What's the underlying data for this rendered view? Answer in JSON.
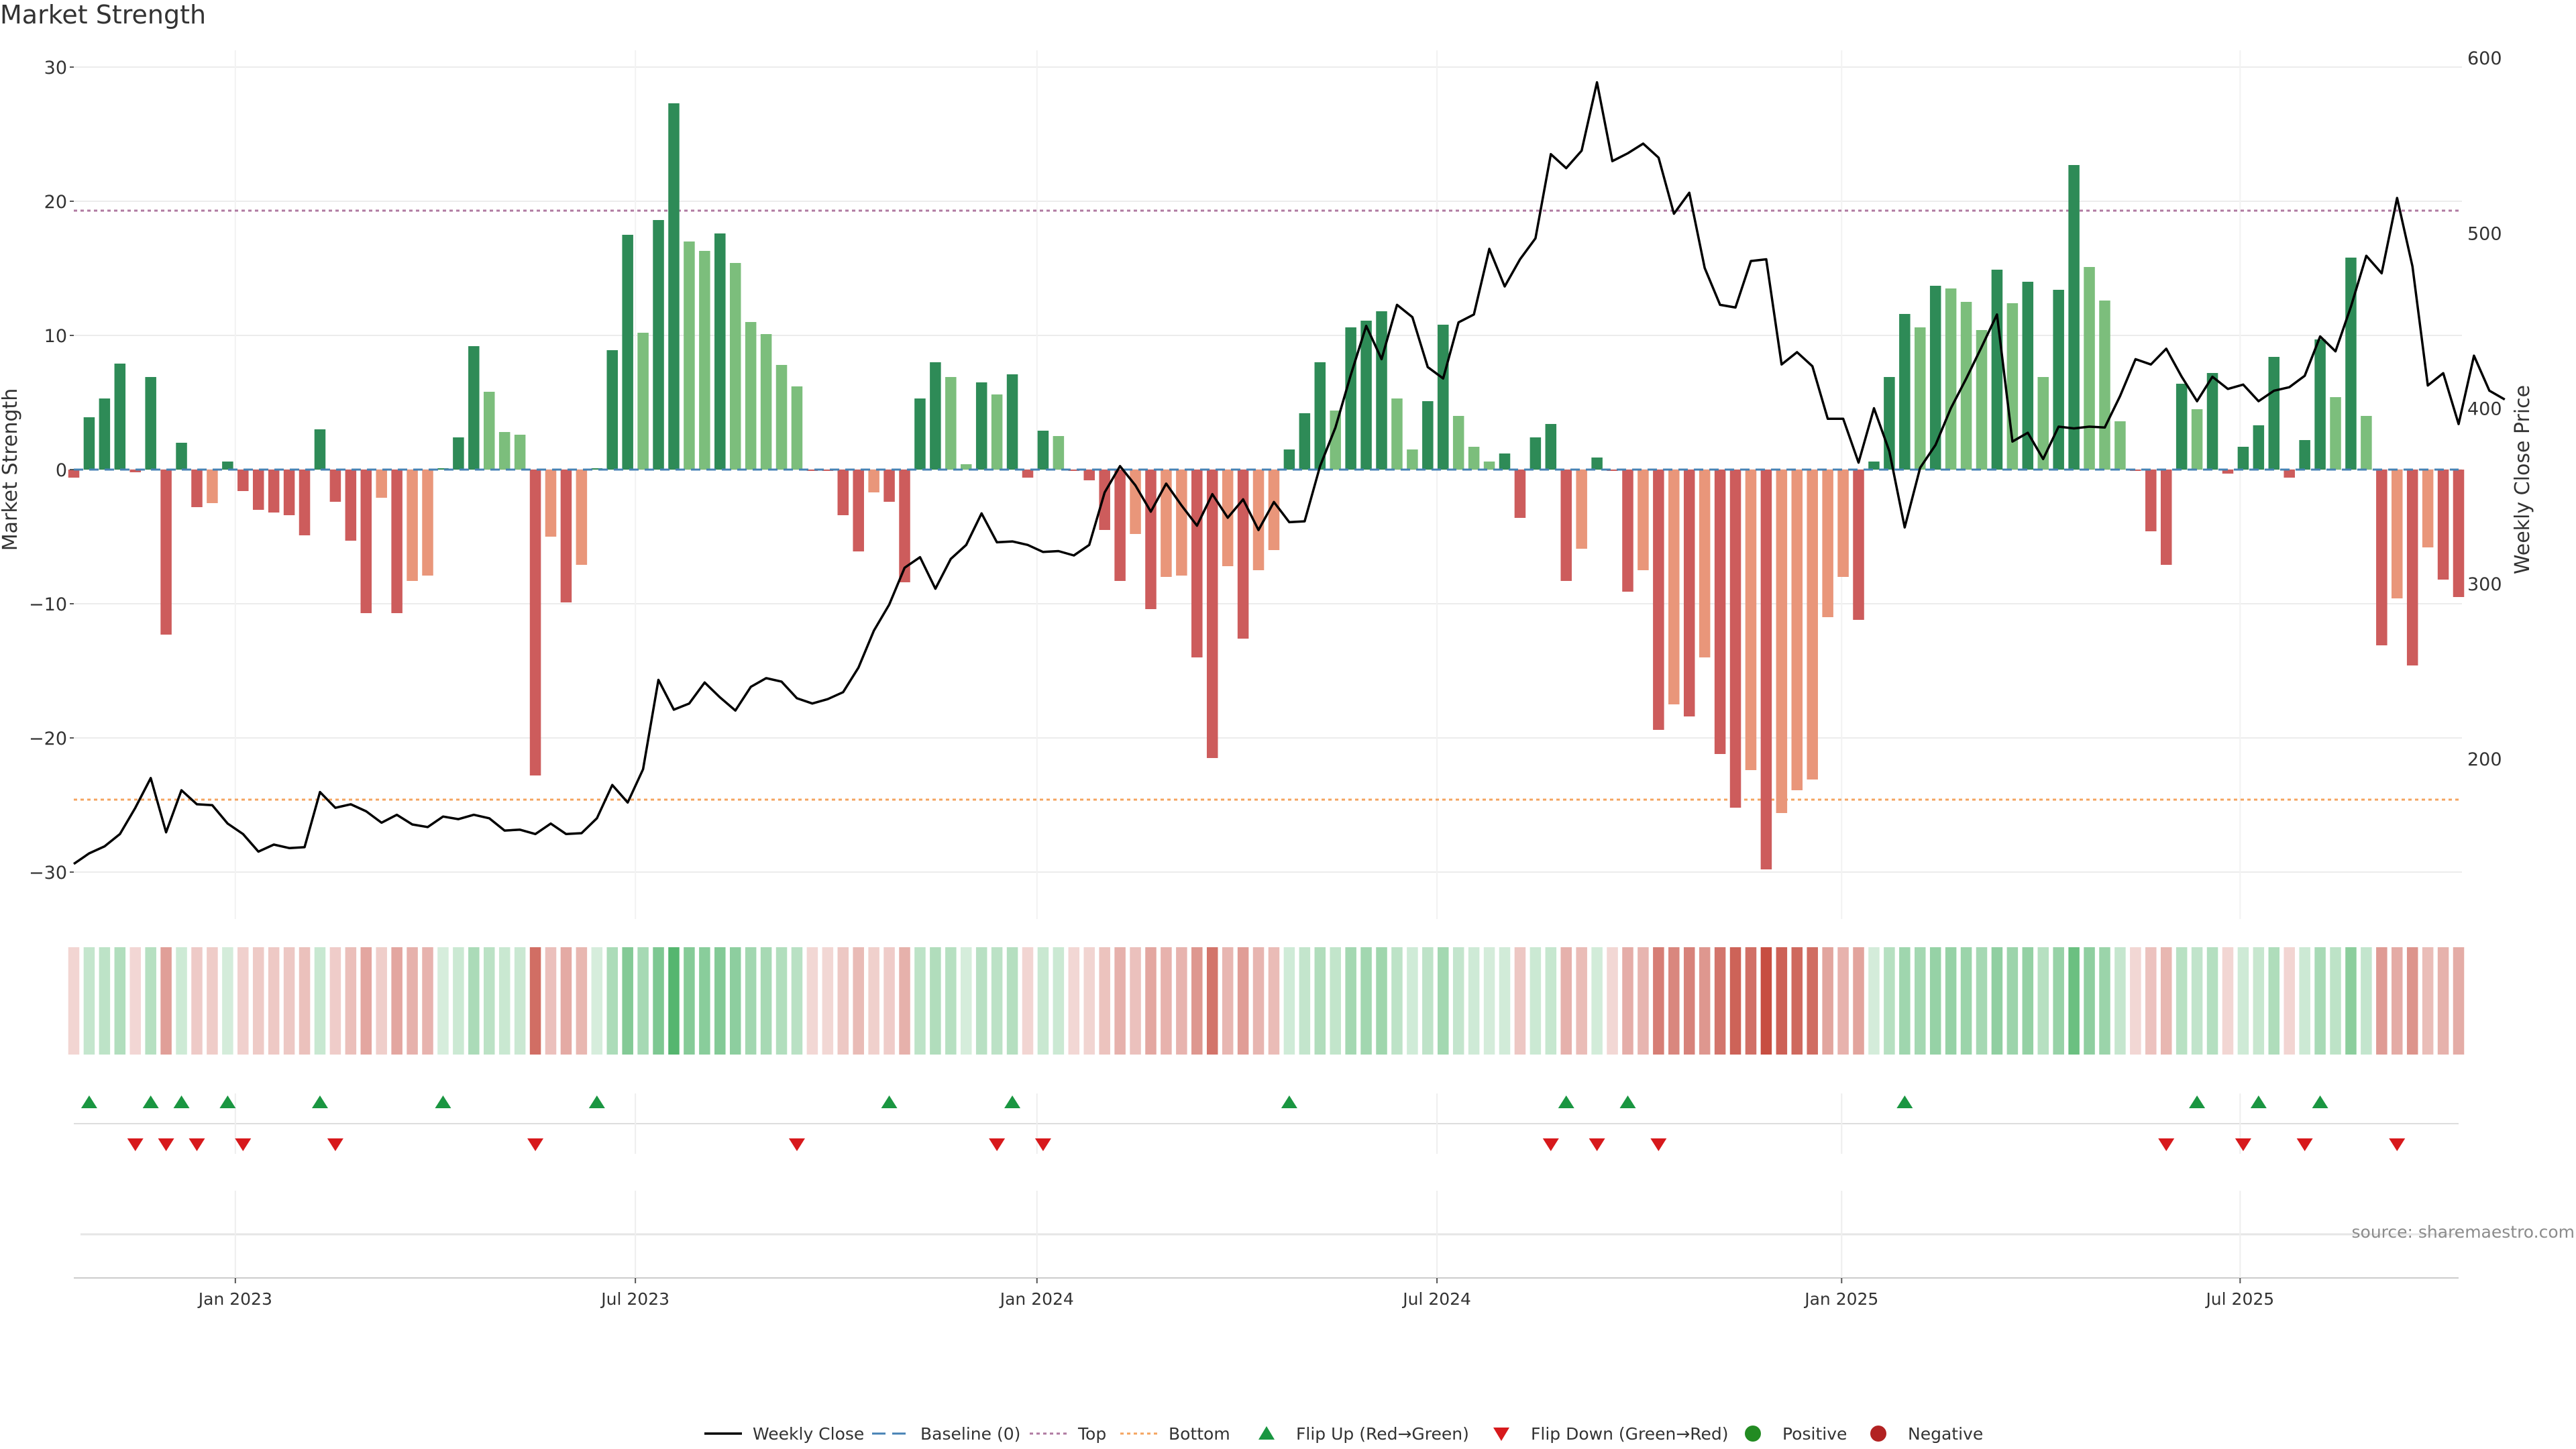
{
  "title": "Market Strength",
  "source": "source: sharemaestro.com",
  "chart_data": {
    "type": "bar",
    "title": "Market Strength",
    "ylabel": "Market Strength",
    "y2label": "Weekly Close Price",
    "ylim": [
      -32,
      32
    ],
    "y2lim": [
      120,
      610
    ],
    "yticks": [
      -30,
      -20,
      -10,
      0,
      10,
      20,
      30
    ],
    "y2ticks": [
      200,
      300,
      400,
      500,
      600
    ],
    "xticks": [
      {
        "x": 10.5,
        "label": "Jan 2023"
      },
      {
        "x": 36.5,
        "label": "Jul 2023"
      },
      {
        "x": 62.6,
        "label": "Jan 2024"
      },
      {
        "x": 88.6,
        "label": "Jul 2024"
      },
      {
        "x": 114.9,
        "label": "Jan 2025"
      },
      {
        "x": 140.8,
        "label": "Jul 2025"
      }
    ],
    "top_line": 19.3,
    "bottom_line": -24.6,
    "strength": [
      -0.6,
      3.9,
      5.3,
      7.9,
      -0.2,
      6.9,
      -12.3,
      2.0,
      -2.8,
      -2.5,
      0.6,
      -1.6,
      -3.0,
      -3.2,
      -3.4,
      -4.9,
      3.0,
      -2.4,
      -5.3,
      -10.7,
      -2.1,
      -10.7,
      -8.3,
      -7.9,
      0.1,
      2.4,
      9.2,
      5.8,
      2.8,
      2.6,
      -22.8,
      -5.0,
      -9.9,
      -7.1,
      0.1,
      8.9,
      17.5,
      10.2,
      18.6,
      27.3,
      17.0,
      16.3,
      17.6,
      15.4,
      11.0,
      10.1,
      7.8,
      6.2,
      -0.1,
      -0.1,
      -3.4,
      -6.1,
      -1.7,
      -2.4,
      -8.4,
      5.3,
      8.0,
      6.9,
      0.4,
      6.5,
      5.6,
      7.1,
      -0.6,
      2.9,
      2.5,
      -0.1,
      -0.8,
      -4.5,
      -8.3,
      -4.8,
      -10.4,
      -8.0,
      -7.9,
      -14.0,
      -21.5,
      -7.2,
      -12.6,
      -7.5,
      -6.0,
      1.5,
      4.2,
      8.0,
      4.4,
      10.6,
      11.1,
      11.8,
      5.3,
      1.5,
      5.1,
      10.8,
      4.0,
      1.7,
      0.6,
      1.2,
      -3.6,
      2.4,
      3.4,
      -8.3,
      -5.9,
      0.9,
      -0.1,
      -9.1,
      -7.5,
      -19.4,
      -17.5,
      -18.4,
      -14.0,
      -21.2,
      -25.2,
      -22.4,
      -29.8,
      -25.6,
      -23.9,
      -23.1,
      -11.0,
      -8.0,
      -11.2,
      0.6,
      6.9,
      11.6,
      10.6,
      13.7,
      13.5,
      12.5,
      10.4,
      14.9,
      12.4,
      14.0,
      6.9,
      13.4,
      22.7,
      15.1,
      12.6,
      3.6,
      -0.1,
      -4.6,
      -7.1,
      6.4,
      4.5,
      7.2,
      -0.3,
      1.7,
      3.3,
      8.4,
      -0.6,
      2.2,
      9.7,
      5.4,
      15.8,
      4.0,
      -13.1,
      -9.6,
      -14.6,
      -5.8,
      -8.2,
      -9.5
    ],
    "weekly_close": [
      140.0,
      146.0,
      150.0,
      157.0,
      172.0,
      189.0,
      158.0,
      182.0,
      174.0,
      173.5,
      163.0,
      157.0,
      147.0,
      151.0,
      149.0,
      149.5,
      181.0,
      172.0,
      174.0,
      170.0,
      163.5,
      168.0,
      162.5,
      161.0,
      167.0,
      165.5,
      168.0,
      166.0,
      159.0,
      159.5,
      157.0,
      163.0,
      157.0,
      157.5,
      166.0,
      185.0,
      175.0,
      194.0,
      245.0,
      228.0,
      231.5,
      243.5,
      235.0,
      227.5,
      241.0,
      246.0,
      244.0,
      234.5,
      231.5,
      234.0,
      238.0,
      252.0,
      273.0,
      288.0,
      309.0,
      315.0,
      297.0,
      314.0,
      322.0,
      340.0,
      323.5,
      324.0,
      322.0,
      318.0,
      318.5,
      316.0,
      322.0,
      352.0,
      367.0,
      356.0,
      341.0,
      357.0,
      344.5,
      333.0,
      351.0,
      337.5,
      348.0,
      330.5,
      346.5,
      335.0,
      335.5,
      367.0,
      389.0,
      419.0,
      447.0,
      428.0,
      459.0,
      452.0,
      423.5,
      417.0,
      449.0,
      453.5,
      491.0,
      469.5,
      485.0,
      497.0,
      545.0,
      537.0,
      547.0,
      586.0,
      541.0,
      545.5,
      551.0,
      543.0,
      511.0,
      523.0,
      480.0,
      459.0,
      457.5,
      484.0,
      485.0,
      425.0,
      432.0,
      424.0,
      394.0,
      394.0,
      369.0,
      400.0,
      375.5,
      332.0,
      366.0,
      379.0,
      400.0,
      417.0,
      435.0,
      453.5,
      381.0,
      386.0,
      371.0,
      389.5,
      388.5,
      389.5,
      389.0,
      407.0,
      428.0,
      425.0,
      434.0,
      418.0,
      404.0,
      418.0,
      411.0,
      413.5,
      404.0,
      410.0,
      412.0,
      418.5,
      441.0,
      432.5,
      458.0,
      487.0,
      477.0,
      520.0,
      481.0,
      413.0,
      420.0,
      391.0,
      430.0,
      410.0,
      405.0
    ],
    "flip_up_weeks": [
      1,
      5,
      7,
      10,
      16,
      24,
      34,
      53,
      61,
      79,
      97,
      101,
      119,
      138,
      142,
      146
    ],
    "flip_down_weeks": [
      4,
      6,
      8,
      11,
      17,
      30,
      47,
      60,
      63,
      96,
      99,
      103,
      136,
      141,
      145,
      151
    ],
    "legend": [
      "Weekly Close",
      "Baseline (0)",
      "Top",
      "Bottom",
      "Flip Up (Red→Green)",
      "Flip Down (Green→Red)",
      "Positive",
      "Negative"
    ],
    "legend_position": "bottom",
    "grid": true,
    "colors": {
      "strong_positive": "#2e8b57",
      "weak_positive": "#7cbe7c",
      "strong_negative": "#cd5c5c",
      "weak_negative": "#e9967a",
      "close_line": "#000000",
      "baseline": "#4682b4",
      "top_line": "#b07aa1",
      "bottom_line": "#f4a460",
      "flip_up": "#1a9641",
      "flip_down": "#d7191c",
      "positive_dot": "#228b22",
      "negative_dot": "#b22222"
    }
  }
}
